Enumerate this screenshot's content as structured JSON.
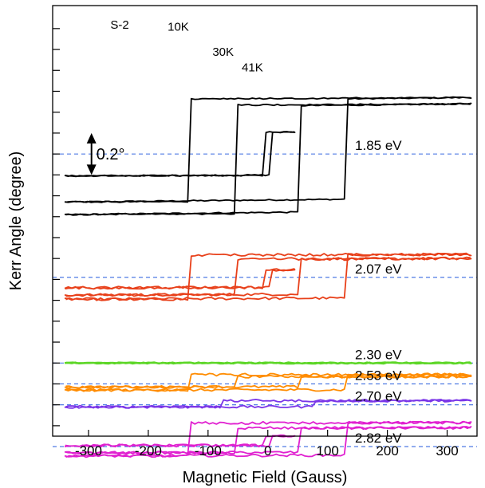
{
  "chart_data": {
    "type": "line",
    "title": "",
    "sample_label": "S-2",
    "xlabel": "Magnetic Field (Gauss)",
    "ylabel": "Kerr Angle (degree)",
    "xlim": [
      -360,
      350
    ],
    "xticks": [
      -300,
      -200,
      -100,
      0,
      100,
      200,
      300
    ],
    "ylim": [
      -0.7,
      3.42
    ],
    "yticks": [
      -0.6,
      -0.4,
      -0.2,
      0.0,
      0.2,
      0.4,
      0.6,
      0.8,
      1.0,
      1.2,
      1.4,
      1.6,
      1.8,
      2.0,
      2.2,
      2.4,
      2.6,
      2.8,
      3.0,
      3.2
    ],
    "yticks_labeled": false,
    "scale_bar": {
      "label": "0.2°",
      "value": 0.2,
      "x": -295,
      "y_center": 2.0
    },
    "grid": false,
    "groups": [
      {
        "energy": "1.85 eV",
        "color": "#000000",
        "baseline": 2.0,
        "label_x": 185,
        "loops": [
          {
            "temperature": "10K",
            "hc": 130,
            "upper": 2.54,
            "lower": 1.54,
            "xmax": 340,
            "label_pos": [
              -132,
              3.18
            ]
          },
          {
            "temperature": "30K",
            "hc": 55,
            "upper": 2.48,
            "lower": 1.42,
            "xmax": 340,
            "label_pos": [
              -57,
              2.94
            ]
          },
          {
            "temperature": "41K",
            "hc": 8,
            "upper": 2.21,
            "lower": 1.79,
            "xmax": 45,
            "label_pos": [
              -8,
              2.79
            ]
          }
        ]
      },
      {
        "energy": "2.07 eV",
        "color": "#e8401a",
        "baseline": 0.82,
        "label_x": 185,
        "loops": [
          {
            "hc": 133,
            "upper": 1.04,
            "lower": 0.61,
            "xmax": 340
          },
          {
            "hc": 55,
            "upper": 1.0,
            "lower": 0.65,
            "xmax": 340
          },
          {
            "hc": 8,
            "upper": 0.89,
            "lower": 0.72,
            "xmax": 45
          }
        ]
      },
      {
        "energy": "2.30 eV",
        "color": "#5cd626",
        "baseline": 0.0,
        "label_x": 185,
        "loops": [
          {
            "hc": 0,
            "upper": 0.0,
            "lower": 0.0,
            "xmax": 340
          }
        ]
      },
      {
        "energy": "2.53 eV",
        "color": "#ff8c00",
        "baseline": -0.2,
        "label_x": 185,
        "loops": [
          {
            "hc": 130,
            "upper": -0.11,
            "lower": -0.26,
            "xmax": 340
          },
          {
            "hc": 55,
            "upper": -0.13,
            "lower": -0.23,
            "xmax": 340
          }
        ]
      },
      {
        "energy": "2.70 eV",
        "color": "#7a35e8",
        "baseline": -0.4,
        "label_x": 185,
        "loops": [
          {
            "hc": 80,
            "upper": -0.36,
            "lower": -0.42,
            "xmax": 340
          }
        ]
      },
      {
        "energy": "2.82 eV",
        "color": "#e020d0",
        "baseline": -0.8,
        "label_x": 185,
        "loops": [
          {
            "hc": 130,
            "upper": -0.57,
            "lower": -0.89,
            "xmax": 340
          },
          {
            "hc": 55,
            "upper": -0.62,
            "lower": -0.86,
            "xmax": 340
          },
          {
            "hc": 8,
            "upper": -0.7,
            "lower": -0.79,
            "xmax": 45
          }
        ]
      }
    ]
  }
}
